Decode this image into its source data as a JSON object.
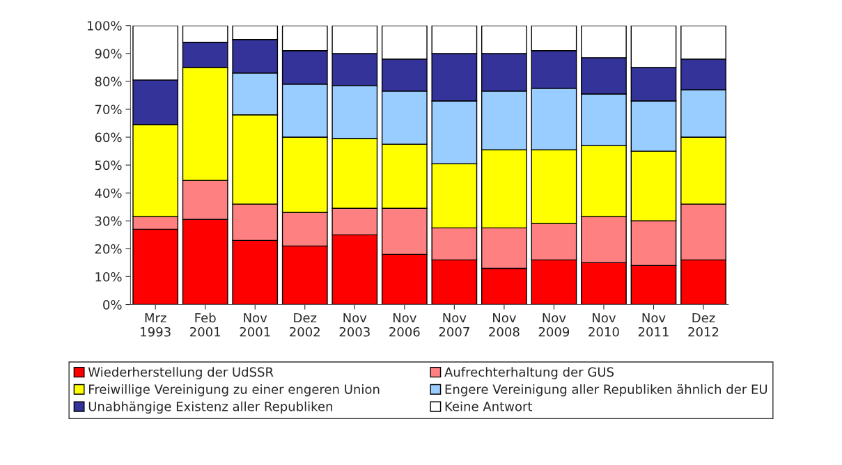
{
  "chart_data": {
    "type": "bar",
    "stacked": true,
    "categories": [
      "Mrz\n1993",
      "Feb\n2001",
      "Nov\n2001",
      "Dez\n2002",
      "Nov\n2003",
      "Nov\n2006",
      "Nov\n2007",
      "Nov\n2008",
      "Nov\n2009",
      "Nov\n2010",
      "Nov\n2011",
      "Dez\n2012"
    ],
    "series": [
      {
        "name": "Wiederherstellung der UdSSR",
        "color": "#ff0000",
        "values": [
          27,
          30.5,
          23,
          21,
          25,
          18,
          16,
          13,
          16,
          15,
          14,
          16
        ]
      },
      {
        "name": "Aufrechterhaltung der GUS",
        "color": "#ff8080",
        "values": [
          4.5,
          14,
          13,
          12,
          9.5,
          16.5,
          11.5,
          14.5,
          13,
          16.5,
          16,
          20
        ]
      },
      {
        "name": "Freiwillige Vereinigung zu einer engeren Union",
        "color": "#ffff00",
        "values": [
          33,
          40.5,
          32,
          27,
          25,
          23,
          23,
          28,
          26.5,
          25.5,
          25,
          24
        ]
      },
      {
        "name": "Engere Vereinigung aller Republiken ähnlich der EU",
        "color": "#99ccff",
        "values": [
          0,
          0,
          15,
          19,
          19,
          19,
          22.5,
          21,
          22,
          18.5,
          18,
          17
        ]
      },
      {
        "name": "Unabhängige Existenz aller Republiken",
        "color": "#333399",
        "values": [
          16,
          9,
          12,
          12,
          11.5,
          11.5,
          17,
          13.5,
          13.5,
          13,
          12,
          11
        ]
      },
      {
        "name": "Keine Antwort",
        "color": "#ffffff",
        "values": [
          19.5,
          6,
          5,
          9,
          10,
          12,
          10,
          10,
          9,
          11.5,
          15,
          12
        ]
      }
    ],
    "ylim": [
      0,
      100
    ],
    "yticks": [
      {
        "value": 0,
        "label": "0%"
      },
      {
        "value": 10,
        "label": "10%"
      },
      {
        "value": 20,
        "label": "20%"
      },
      {
        "value": 30,
        "label": "30%"
      },
      {
        "value": 40,
        "label": "40%"
      },
      {
        "value": 50,
        "label": "50%"
      },
      {
        "value": 60,
        "label": "60%"
      },
      {
        "value": 70,
        "label": "70%"
      },
      {
        "value": 80,
        "label": "80%"
      },
      {
        "value": 90,
        "label": "90%"
      },
      {
        "value": 100,
        "label": "100%"
      }
    ],
    "grid": false,
    "legend": "bottom"
  }
}
